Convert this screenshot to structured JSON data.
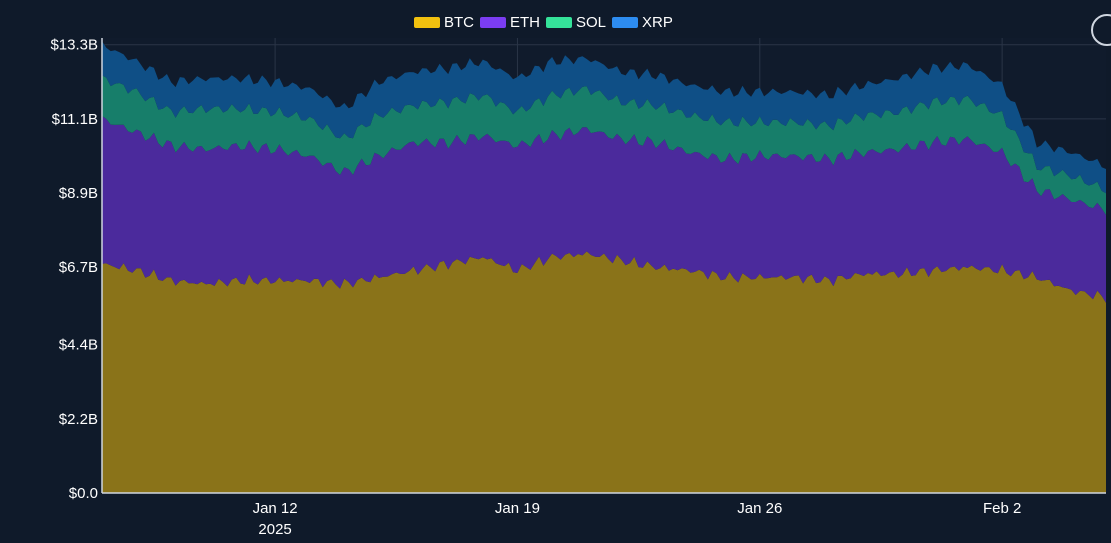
{
  "chart_data": {
    "type": "area",
    "stacked": true,
    "title": "",
    "xlabel": "",
    "ylabel": "",
    "x_start": "2025-01-07",
    "x_end": "2025-02-05",
    "x_ticks": [
      {
        "date": "2025-01-12",
        "label": "Jan 12",
        "sublabel": "2025"
      },
      {
        "date": "2025-01-19",
        "label": "Jan 19",
        "sublabel": ""
      },
      {
        "date": "2025-01-26",
        "label": "Jan 26",
        "sublabel": ""
      },
      {
        "date": "2025-02-02",
        "label": "Feb 2",
        "sublabel": ""
      }
    ],
    "y_ticks": [
      {
        "value": 0,
        "label": "$0.0"
      },
      {
        "value": 2.2,
        "label": "$2.2B"
      },
      {
        "value": 4.4,
        "label": "$4.4B"
      },
      {
        "value": 6.7,
        "label": "$6.7B"
      },
      {
        "value": 8.9,
        "label": "$8.9B"
      },
      {
        "value": 11.1,
        "label": "$11.1B"
      },
      {
        "value": 13.3,
        "label": "$13.3B"
      }
    ],
    "ylim": [
      0,
      13.5
    ],
    "unit": "billions USD",
    "grid": true,
    "legend_position": "top-center",
    "x": [
      "2025-01-07",
      "2025-01-08",
      "2025-01-09",
      "2025-01-10",
      "2025-01-11",
      "2025-01-12",
      "2025-01-13",
      "2025-01-14",
      "2025-01-15",
      "2025-01-16",
      "2025-01-17",
      "2025-01-18",
      "2025-01-19",
      "2025-01-20",
      "2025-01-21",
      "2025-01-22",
      "2025-01-23",
      "2025-01-24",
      "2025-01-25",
      "2025-01-26",
      "2025-01-27",
      "2025-01-28",
      "2025-01-29",
      "2025-01-30",
      "2025-01-31",
      "2025-02-01",
      "2025-02-02",
      "2025-02-03",
      "2025-02-04",
      "2025-02-05"
    ],
    "series": [
      {
        "name": "BTC",
        "color": "#f2c10f",
        "fill": "#8a7319",
        "values": [
          6.8,
          6.6,
          6.3,
          6.2,
          6.3,
          6.3,
          6.3,
          6.2,
          6.4,
          6.6,
          6.8,
          7.0,
          6.6,
          7.0,
          7.1,
          6.9,
          6.7,
          6.6,
          6.4,
          6.4,
          6.4,
          6.3,
          6.5,
          6.5,
          6.6,
          6.7,
          6.6,
          6.4,
          6.0,
          5.8
        ]
      },
      {
        "name": "ETH",
        "color": "#7b3df2",
        "fill": "#4b2a9c",
        "values": [
          4.3,
          4.1,
          4.0,
          4.0,
          4.0,
          3.9,
          3.7,
          3.3,
          3.6,
          3.8,
          3.6,
          3.6,
          3.7,
          3.6,
          3.7,
          3.6,
          3.7,
          3.5,
          3.5,
          3.6,
          3.6,
          3.6,
          3.6,
          3.7,
          3.8,
          3.8,
          3.5,
          2.6,
          2.7,
          2.6
        ]
      },
      {
        "name": "SOL",
        "color": "#35e39a",
        "fill": "#177e6a",
        "values": [
          1.2,
          1.2,
          1.0,
          1.2,
          1.1,
          1.1,
          1.1,
          1.0,
          1.2,
          1.1,
          1.2,
          1.2,
          1.0,
          1.2,
          1.2,
          1.1,
          1.1,
          1.1,
          1.1,
          1.0,
          1.0,
          1.0,
          1.1,
          1.1,
          1.2,
          1.2,
          1.1,
          0.7,
          0.7,
          0.6
        ]
      },
      {
        "name": "XRP",
        "color": "#2d8cf0",
        "fill": "#0f4f86",
        "values": [
          1.0,
          0.9,
          0.9,
          0.9,
          0.9,
          0.9,
          0.9,
          0.9,
          1.0,
          1.0,
          1.0,
          1.0,
          1.0,
          1.0,
          0.9,
          0.9,
          0.9,
          0.9,
          0.9,
          0.9,
          0.9,
          0.9,
          0.9,
          1.0,
          1.0,
          1.0,
          0.9,
          0.7,
          0.7,
          0.7
        ]
      }
    ]
  }
}
